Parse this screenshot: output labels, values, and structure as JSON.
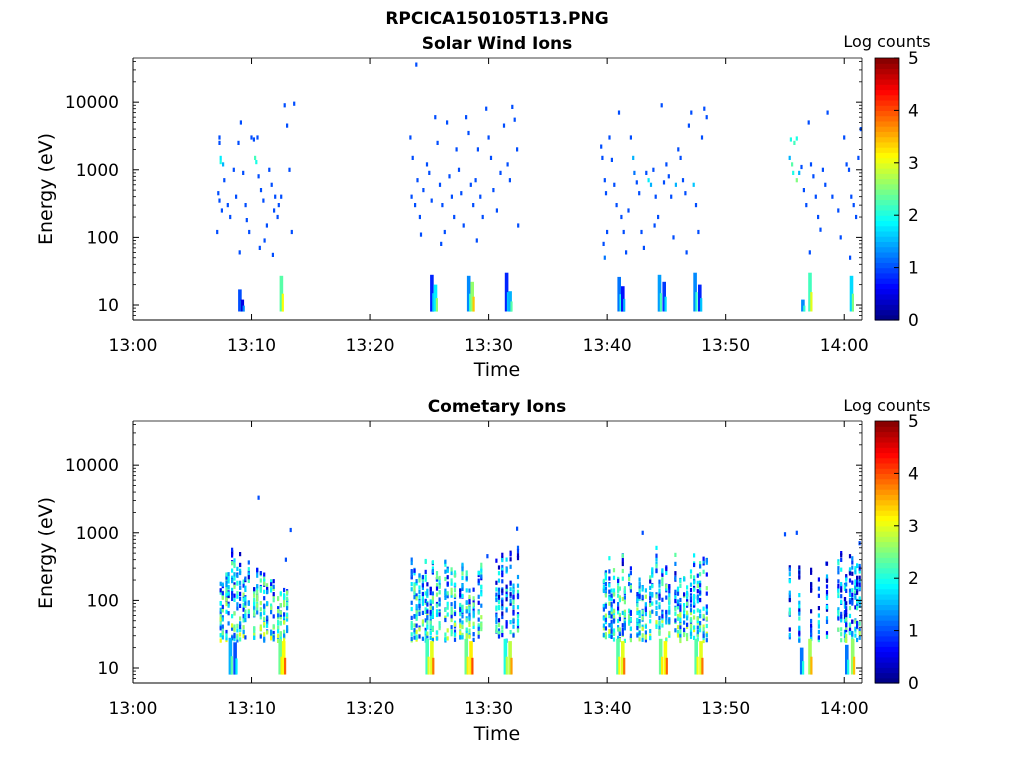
{
  "figure": {
    "filename": "RPCICA150105T13.PNG"
  },
  "colorbar": {
    "label": "Log counts",
    "ticks": [
      "0",
      "1",
      "2",
      "3",
      "4",
      "5"
    ]
  },
  "chart_data": [
    {
      "type": "heatmap",
      "title": "Solar Wind Ions",
      "xlabel": "Time",
      "ylabel": "Energy (eV)",
      "x_ticks": [
        "13:00",
        "13:10",
        "13:20",
        "13:30",
        "13:40",
        "13:50",
        "14:00"
      ],
      "xlim": [
        "13:00",
        "14:01.5"
      ],
      "y_ticks": [
        "10",
        "100",
        "1000",
        "10000"
      ],
      "y_scale": "log",
      "ylim": [
        6,
        45000
      ],
      "colorbar_range": [
        0,
        5
      ],
      "colorbar_label": "Log counts",
      "colormap": "jet",
      "legend": "none",
      "points": [
        [
          "13:07.3",
          3000,
          1
        ],
        [
          "13:07.3",
          2500,
          1
        ],
        [
          "13:07.4",
          1500,
          1.8
        ],
        [
          "13:07.4",
          1300,
          2.0
        ],
        [
          "13:07.6",
          1200,
          1.5
        ],
        [
          "13:07.2",
          450,
          1
        ],
        [
          "13:07.3",
          350,
          1
        ],
        [
          "13:07.5",
          250,
          1
        ],
        [
          "13:07.1",
          120,
          1
        ],
        [
          "13:07.7",
          700,
          1
        ],
        [
          "13:08.0",
          300,
          1
        ],
        [
          "13:08.2",
          200,
          1
        ],
        [
          "13:08.5",
          1000,
          1
        ],
        [
          "13:08.7",
          400,
          1
        ],
        [
          "13:08.9",
          2500,
          1
        ],
        [
          "13:09.1",
          5000,
          1
        ],
        [
          "13:09.3",
          900,
          1
        ],
        [
          "13:09.5",
          300,
          1
        ],
        [
          "13:09.6",
          180,
          1
        ],
        [
          "13:09.8",
          120,
          1
        ],
        [
          "13:10.0",
          3000,
          1
        ],
        [
          "13:10.2",
          2800,
          1
        ],
        [
          "13:10.3",
          1500,
          2.2
        ],
        [
          "13:10.4",
          1300,
          2.0
        ],
        [
          "13:10.5",
          3000,
          1
        ],
        [
          "13:10.6",
          800,
          1
        ],
        [
          "13:10.8",
          500,
          1
        ],
        [
          "13:11.0",
          350,
          1
        ],
        [
          "13:11.1",
          90,
          1
        ],
        [
          "13:11.3",
          150,
          1
        ],
        [
          "13:11.5",
          1000,
          1
        ],
        [
          "13:11.7",
          600,
          1
        ],
        [
          "13:11.9",
          250,
          1
        ],
        [
          "13:12.2",
          200,
          1
        ],
        [
          "13:12.5",
          400,
          1
        ],
        [
          "13:12.8",
          9000,
          1
        ],
        [
          "13:13.0",
          4500,
          1
        ],
        [
          "13:13.2",
          1000,
          1
        ],
        [
          "13:13.4",
          120,
          1
        ],
        [
          "13:13.6",
          9500,
          1
        ],
        [
          "13:09.0",
          60,
          1
        ],
        [
          "13:10.7",
          70,
          1
        ],
        [
          "13:11.8",
          55,
          1
        ],
        [
          "13:12.0",
          400,
          1
        ],
        [
          "13:12.3",
          300,
          1
        ],
        [
          "13:23.4",
          3000,
          1
        ],
        [
          "13:23.6",
          1500,
          1
        ],
        [
          "13:23.5",
          400,
          1
        ],
        [
          "13:23.8",
          300,
          1
        ],
        [
          "13:24.0",
          700,
          1
        ],
        [
          "13:24.2",
          200,
          1
        ],
        [
          "13:24.5",
          500,
          1
        ],
        [
          "13:24.8",
          1200,
          1
        ],
        [
          "13:25.0",
          900,
          1
        ],
        [
          "13:25.2",
          350,
          1
        ],
        [
          "13:25.5",
          6000,
          1
        ],
        [
          "13:25.7",
          2500,
          1
        ],
        [
          "13:25.9",
          600,
          1
        ],
        [
          "13:26.1",
          300,
          1
        ],
        [
          "13:26.3",
          120,
          1
        ],
        [
          "13:26.5",
          5000,
          1
        ],
        [
          "13:26.7",
          800,
          1
        ],
        [
          "13:26.9",
          400,
          1
        ],
        [
          "13:27.1",
          200,
          1
        ],
        [
          "13:27.3",
          2000,
          1
        ],
        [
          "13:27.5",
          1000,
          1
        ],
        [
          "13:27.7",
          450,
          1
        ],
        [
          "13:27.9",
          150,
          1
        ],
        [
          "13:28.1",
          6000,
          1
        ],
        [
          "13:28.3",
          3500,
          1
        ],
        [
          "13:28.5",
          600,
          1
        ],
        [
          "13:28.7",
          300,
          1
        ],
        [
          "13:28.9",
          700,
          1
        ],
        [
          "13:29.1",
          2000,
          1
        ],
        [
          "13:29.3",
          400,
          1
        ],
        [
          "13:29.5",
          200,
          1
        ],
        [
          "13:29.8",
          8000,
          1
        ],
        [
          "13:30.0",
          3000,
          1
        ],
        [
          "13:30.2",
          1500,
          1
        ],
        [
          "13:30.4",
          500,
          1
        ],
        [
          "13:30.7",
          250,
          1
        ],
        [
          "13:31.0",
          900,
          1
        ],
        [
          "13:31.3",
          4500,
          1
        ],
        [
          "13:31.6",
          1200,
          1
        ],
        [
          "13:31.8",
          700,
          1
        ],
        [
          "13:32.0",
          8500,
          1
        ],
        [
          "13:32.2",
          5500,
          1
        ],
        [
          "13:32.4",
          2000,
          1
        ],
        [
          "13:24.3",
          110,
          1
        ],
        [
          "13:26.0",
          80,
          1
        ],
        [
          "13:32.5",
          150,
          1
        ],
        [
          "13:29.0",
          90,
          1
        ],
        [
          "13:23.9",
          36000,
          1
        ],
        [
          "13:39.5",
          2200,
          1
        ],
        [
          "13:39.6",
          1500,
          1
        ],
        [
          "13:39.8",
          700,
          1
        ],
        [
          "13:39.9",
          450,
          1
        ],
        [
          "13:39.7",
          80,
          1
        ],
        [
          "13:39.8",
          50,
          1.2
        ],
        [
          "13:40.0",
          120,
          1
        ],
        [
          "13:40.2",
          3000,
          1
        ],
        [
          "13:40.4",
          1400,
          1
        ],
        [
          "13:40.6",
          600,
          1
        ],
        [
          "13:40.8",
          300,
          1
        ],
        [
          "13:41.0",
          7000,
          1
        ],
        [
          "13:41.2",
          200,
          1
        ],
        [
          "13:41.4",
          120,
          1
        ],
        [
          "13:41.6",
          60,
          1
        ],
        [
          "13:42.0",
          3000,
          1
        ],
        [
          "13:42.2",
          1500,
          1.5
        ],
        [
          "13:42.3",
          900,
          1.2
        ],
        [
          "13:42.5",
          650,
          1
        ],
        [
          "13:42.7",
          450,
          1
        ],
        [
          "13:42.9",
          120,
          1
        ],
        [
          "13:43.1",
          70,
          1
        ],
        [
          "13:43.3",
          900,
          1
        ],
        [
          "13:43.5",
          700,
          1.8
        ],
        [
          "13:43.7",
          600,
          1.5
        ],
        [
          "13:43.9",
          1000,
          1
        ],
        [
          "13:44.1",
          400,
          1
        ],
        [
          "13:44.3",
          200,
          1
        ],
        [
          "13:44.6",
          9000,
          1
        ],
        [
          "13:44.8",
          650,
          1
        ],
        [
          "13:45.0",
          1200,
          1
        ],
        [
          "13:45.2",
          800,
          1
        ],
        [
          "13:45.4",
          400,
          1
        ],
        [
          "13:45.6",
          100,
          1
        ],
        [
          "13:45.8",
          600,
          1.5
        ],
        [
          "13:46.0",
          2000,
          1
        ],
        [
          "13:46.2",
          1500,
          1
        ],
        [
          "13:46.4",
          700,
          1
        ],
        [
          "13:46.6",
          450,
          1
        ],
        [
          "13:46.9",
          4500,
          1
        ],
        [
          "13:47.1",
          7000,
          1
        ],
        [
          "13:47.3",
          600,
          1.6
        ],
        [
          "13:47.5",
          300,
          1
        ],
        [
          "13:47.7",
          120,
          1
        ],
        [
          "13:48.0",
          3000,
          1
        ],
        [
          "13:48.2",
          8000,
          1
        ],
        [
          "13:48.4",
          6000,
          1
        ],
        [
          "13:41.8",
          250,
          1
        ],
        [
          "13:44.0",
          150,
          1
        ],
        [
          "13:46.7",
          60,
          1
        ],
        [
          "13:55.5",
          2800,
          2.0
        ],
        [
          "13:55.8",
          2500,
          2.2
        ],
        [
          "13:56.0",
          2900,
          2.0
        ],
        [
          "13:55.4",
          1500,
          1.5
        ],
        [
          "13:55.6",
          1200,
          2.3
        ],
        [
          "13:55.7",
          900,
          2.0
        ],
        [
          "13:56.0",
          700,
          2.5
        ],
        [
          "13:56.2",
          900,
          1.5
        ],
        [
          "13:56.4",
          1100,
          1
        ],
        [
          "13:56.6",
          500,
          1
        ],
        [
          "13:56.8",
          300,
          1
        ],
        [
          "13:57.0",
          5000,
          1
        ],
        [
          "13:57.2",
          1200,
          1
        ],
        [
          "13:57.4",
          800,
          1
        ],
        [
          "13:57.6",
          400,
          1
        ],
        [
          "13:57.8",
          200,
          1
        ],
        [
          "13:58.0",
          130,
          1
        ],
        [
          "13:58.2",
          1000,
          1
        ],
        [
          "13:58.4",
          600,
          1
        ],
        [
          "13:58.6",
          7000,
          1
        ],
        [
          "13:59.0",
          400,
          1
        ],
        [
          "13:59.5",
          250,
          1
        ],
        [
          "14:00.0",
          3000,
          1
        ],
        [
          "14:00.2",
          1200,
          1
        ],
        [
          "14:00.4",
          1000,
          1
        ],
        [
          "14:00.6",
          400,
          1
        ],
        [
          "14:00.8",
          300,
          1
        ],
        [
          "14:01.0",
          200,
          1
        ],
        [
          "14:01.2",
          1500,
          1
        ],
        [
          "14:01.4",
          4000,
          1
        ],
        [
          "13:57.1",
          60,
          1
        ],
        [
          "13:59.7",
          100,
          1
        ],
        [
          "14:00.5",
          50,
          1
        ]
      ],
      "bars": [
        [
          "13:09.0",
          8,
          17,
          1
        ],
        [
          "13:09.2",
          8,
          12,
          0.5
        ],
        [
          "13:12.5",
          8,
          27,
          2.3
        ],
        [
          "13:25.2",
          8,
          28,
          0.8
        ],
        [
          "13:25.5",
          8,
          20,
          1.8
        ],
        [
          "13:28.3",
          8,
          27,
          1.3
        ],
        [
          "13:28.6",
          8,
          22,
          2.6
        ],
        [
          "13:31.5",
          8,
          30,
          0.8
        ],
        [
          "13:31.8",
          8,
          16,
          1.5
        ],
        [
          "13:41.0",
          8,
          26,
          1.2
        ],
        [
          "13:41.3",
          8,
          19,
          0.7
        ],
        [
          "13:44.4",
          8,
          28,
          1.4
        ],
        [
          "13:44.8",
          8,
          22,
          0.9
        ],
        [
          "13:47.4",
          8,
          30,
          1.3
        ],
        [
          "13:47.8",
          8,
          20,
          0.8
        ],
        [
          "13:56.5",
          8,
          12,
          1.3
        ],
        [
          "13:57.1",
          8,
          30,
          2.2
        ],
        [
          "14:00.6",
          8,
          27,
          1.7
        ]
      ]
    },
    {
      "type": "heatmap",
      "title": "Cometary Ions",
      "xlabel": "Time",
      "ylabel": "Energy (eV)",
      "x_ticks": [
        "13:00",
        "13:10",
        "13:20",
        "13:30",
        "13:40",
        "13:50",
        "14:00"
      ],
      "xlim": [
        "13:00",
        "14:01.5"
      ],
      "y_ticks": [
        "10",
        "100",
        "1000",
        "10000"
      ],
      "y_scale": "log",
      "ylim": [
        6,
        45000
      ],
      "colorbar_range": [
        0,
        5
      ],
      "colorbar_label": "Log counts",
      "colormap": "jet",
      "legend": "none",
      "points": [
        [
          "13:10.6",
          3300,
          1
        ],
        [
          "13:13.3",
          1100,
          1
        ],
        [
          "13:32.4",
          1150,
          1
        ],
        [
          "13:43.0",
          1000,
          1
        ],
        [
          "13:55.0",
          950,
          1
        ],
        [
          "13:56.0",
          1000,
          1
        ],
        [
          "14:01.3",
          700,
          1
        ],
        [
          "13:29.9",
          450,
          1
        ],
        [
          "13:12.9",
          400,
          1
        ],
        [
          "13:58.5",
          350,
          1
        ]
      ],
      "clusters": [
        [
          "13:07.3",
          "13:09.9",
          25,
          650,
          2.0,
          11,
          28
        ],
        [
          "13:10.1",
          "13:13.2",
          25,
          450,
          2.0,
          11,
          28
        ],
        [
          "13:23.4",
          "13:26.0",
          25,
          450,
          2.0,
          11,
          28
        ],
        [
          "13:26.2",
          "13:29.6",
          25,
          600,
          2.0,
          11,
          28
        ],
        [
          "13:30.5",
          "13:32.6",
          25,
          800,
          1.6,
          7,
          28
        ],
        [
          "13:39.6",
          "13:42.2",
          25,
          550,
          2.0,
          11,
          28
        ],
        [
          "13:42.4",
          "13:45.4",
          25,
          650,
          2.0,
          11,
          28
        ],
        [
          "13:45.6",
          "13:48.6",
          25,
          550,
          2.0,
          11,
          28
        ],
        [
          "13:55.4",
          "13:58.9",
          25,
          450,
          1.4,
          5,
          28
        ],
        [
          "13:59.5",
          "14:01.5",
          25,
          750,
          1.7,
          9,
          28
        ]
      ],
      "bars": [
        [
          "13:08.2",
          8,
          28,
          1.5
        ],
        [
          "13:08.6",
          8,
          24,
          1.0
        ],
        [
          "13:12.4",
          8,
          27,
          2.4
        ],
        [
          "13:12.7",
          8,
          25,
          3.1
        ],
        [
          "13:24.8",
          8,
          27,
          2.2
        ],
        [
          "13:25.2",
          8,
          25,
          3.0
        ],
        [
          "13:28.1",
          8,
          27,
          2.4
        ],
        [
          "13:28.5",
          8,
          25,
          3.2
        ],
        [
          "13:31.4",
          8,
          27,
          2.0
        ],
        [
          "13:31.8",
          8,
          25,
          2.8
        ],
        [
          "13:40.9",
          8,
          27,
          2.3
        ],
        [
          "13:41.3",
          8,
          25,
          3.0
        ],
        [
          "13:44.5",
          8,
          27,
          2.4
        ],
        [
          "13:44.9",
          8,
          25,
          3.1
        ],
        [
          "13:47.5",
          8,
          27,
          2.3
        ],
        [
          "13:47.9",
          8,
          25,
          3.0
        ],
        [
          "13:56.4",
          8,
          20,
          1.2
        ],
        [
          "13:57.1",
          8,
          27,
          2.7
        ],
        [
          "14:00.2",
          8,
          22,
          1.2
        ],
        [
          "14:00.7",
          8,
          27,
          2.6
        ]
      ]
    }
  ]
}
